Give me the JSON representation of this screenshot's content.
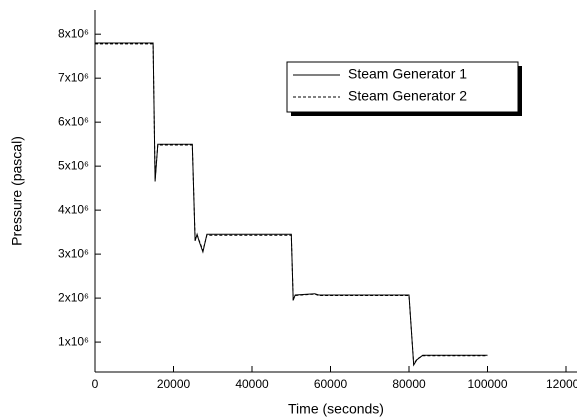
{
  "chart_data": {
    "type": "line",
    "x_label": "Time (seconds)",
    "y_label": "Pressure (pascal)",
    "x": [
      0,
      14800,
      15300,
      16000,
      24800,
      25500,
      26000,
      26500,
      27500,
      28500,
      50000,
      50500,
      51000,
      56000,
      57000,
      80000,
      81200,
      82000,
      83500,
      100000
    ],
    "series": [
      {
        "name": "Steam Generator 1",
        "color": "#000000",
        "dash": "solid",
        "values": [
          7800000,
          7800000,
          4650000,
          5500000,
          5500000,
          3300000,
          3450000,
          3300000,
          3050000,
          3450000,
          3450000,
          1950000,
          2070000,
          2100000,
          2070000,
          2070000,
          480000,
          600000,
          700000,
          700000
        ]
      },
      {
        "name": "Steam Generator 2",
        "color": "#000000",
        "dash": "dashed",
        "values": [
          7780000,
          7780000,
          4700000,
          5480000,
          5480000,
          3350000,
          3430000,
          3320000,
          3080000,
          3430000,
          3430000,
          1980000,
          2060000,
          2090000,
          2060000,
          2060000,
          500000,
          610000,
          690000,
          690000
        ]
      }
    ],
    "xlim": [
      0,
      122800
    ],
    "xticks": [
      0,
      20000,
      40000,
      60000,
      80000,
      100000,
      120000
    ],
    "ylim": [
      320000,
      8550000
    ],
    "yticks": [
      {
        "value": 1000000,
        "label": "1x10⁶"
      },
      {
        "value": 2000000,
        "label": "2x10⁶"
      },
      {
        "value": 3000000,
        "label": "3x10⁶"
      },
      {
        "value": 4000000,
        "label": "4x10⁶"
      },
      {
        "value": 5000000,
        "label": "5x10⁶"
      },
      {
        "value": 6000000,
        "label": "6x10⁶"
      },
      {
        "value": 7000000,
        "label": "7x10⁶"
      },
      {
        "value": 8000000,
        "label": "8x10⁶"
      }
    ],
    "grid": false
  }
}
